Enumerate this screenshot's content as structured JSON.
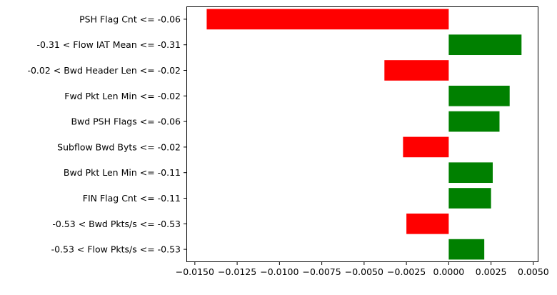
{
  "chart_data": {
    "type": "bar",
    "orientation": "horizontal",
    "title": "",
    "xlabel": "",
    "ylabel": "",
    "categories": [
      "PSH Flag Cnt <= -0.06",
      "-0.31 < Flow IAT Mean <= -0.31",
      "-0.02 < Bwd Header Len <= -0.02",
      "Fwd Pkt Len Min <= -0.02",
      "Bwd PSH Flags <= -0.06",
      "Subflow Bwd Byts <= -0.02",
      "Bwd Pkt Len Min <= -0.11",
      "FIN Flag Cnt <= -0.11",
      "-0.53 < Bwd Pkts/s <= -0.53",
      "-0.53 < Flow Pkts/s <= -0.53"
    ],
    "values": [
      -0.0143,
      0.0043,
      -0.0038,
      0.0036,
      0.003,
      -0.0027,
      0.0026,
      0.0025,
      -0.0025,
      0.0021
    ],
    "xlim": [
      -0.0155,
      0.0053
    ],
    "xticks": [
      -0.015,
      -0.0125,
      -0.01,
      -0.0075,
      -0.005,
      -0.0025,
      0.0,
      0.0025,
      0.005
    ],
    "xtick_labels": [
      "−0.0150",
      "−0.0125",
      "−0.0100",
      "−0.0075",
      "−0.0050",
      "−0.0025",
      "0.0000",
      "0.0025",
      "0.0050"
    ],
    "colors": {
      "negative": "#ff0000",
      "positive": "#008000"
    },
    "grid": false,
    "legend": "none"
  }
}
